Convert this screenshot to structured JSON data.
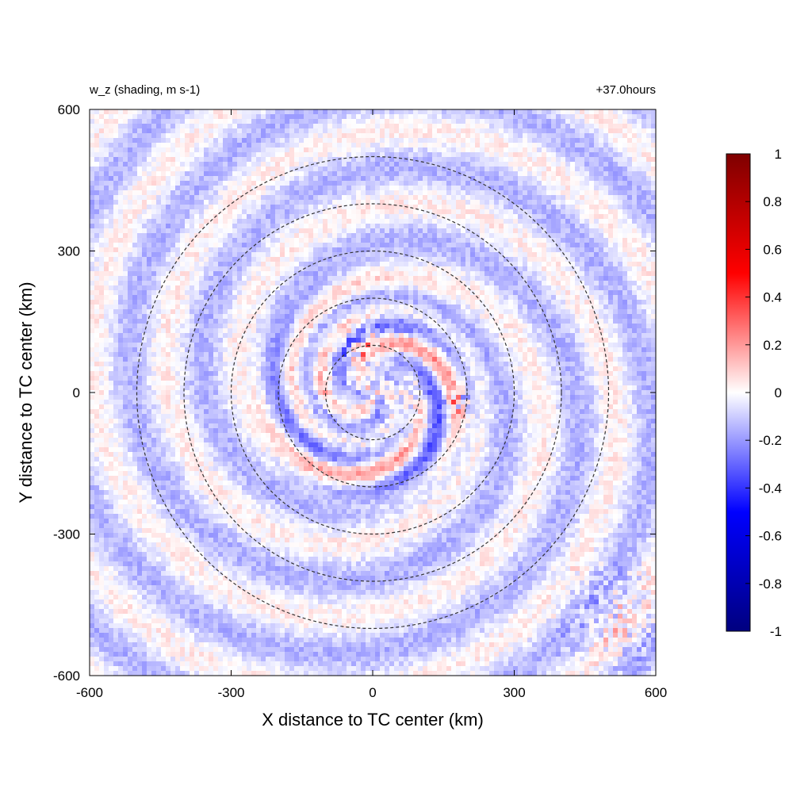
{
  "chart_data": {
    "type": "heatmap",
    "title_left": "w_z (shading, m s-1)",
    "title_right": "+37.0hours",
    "xlabel": "X distance to TC center (km)",
    "ylabel": "Y distance to TC center (km)",
    "xlim": [
      -600,
      600
    ],
    "ylim": [
      -600,
      600
    ],
    "xticks": [
      -600,
      -300,
      0,
      300,
      600
    ],
    "yticks": [
      -600,
      -300,
      0,
      300,
      600
    ],
    "range_rings_km": [
      100,
      200,
      300,
      400,
      500
    ],
    "colorbar": {
      "min": -1,
      "max": 1,
      "ticks": [
        1,
        0.8,
        0.6,
        0.4,
        0.2,
        0,
        -0.2,
        -0.4,
        -0.6,
        -0.8,
        -1
      ],
      "colors": [
        "#00007f",
        "#0000ff",
        "#ffffff",
        "#ff0000",
        "#7f0000"
      ]
    }
  }
}
